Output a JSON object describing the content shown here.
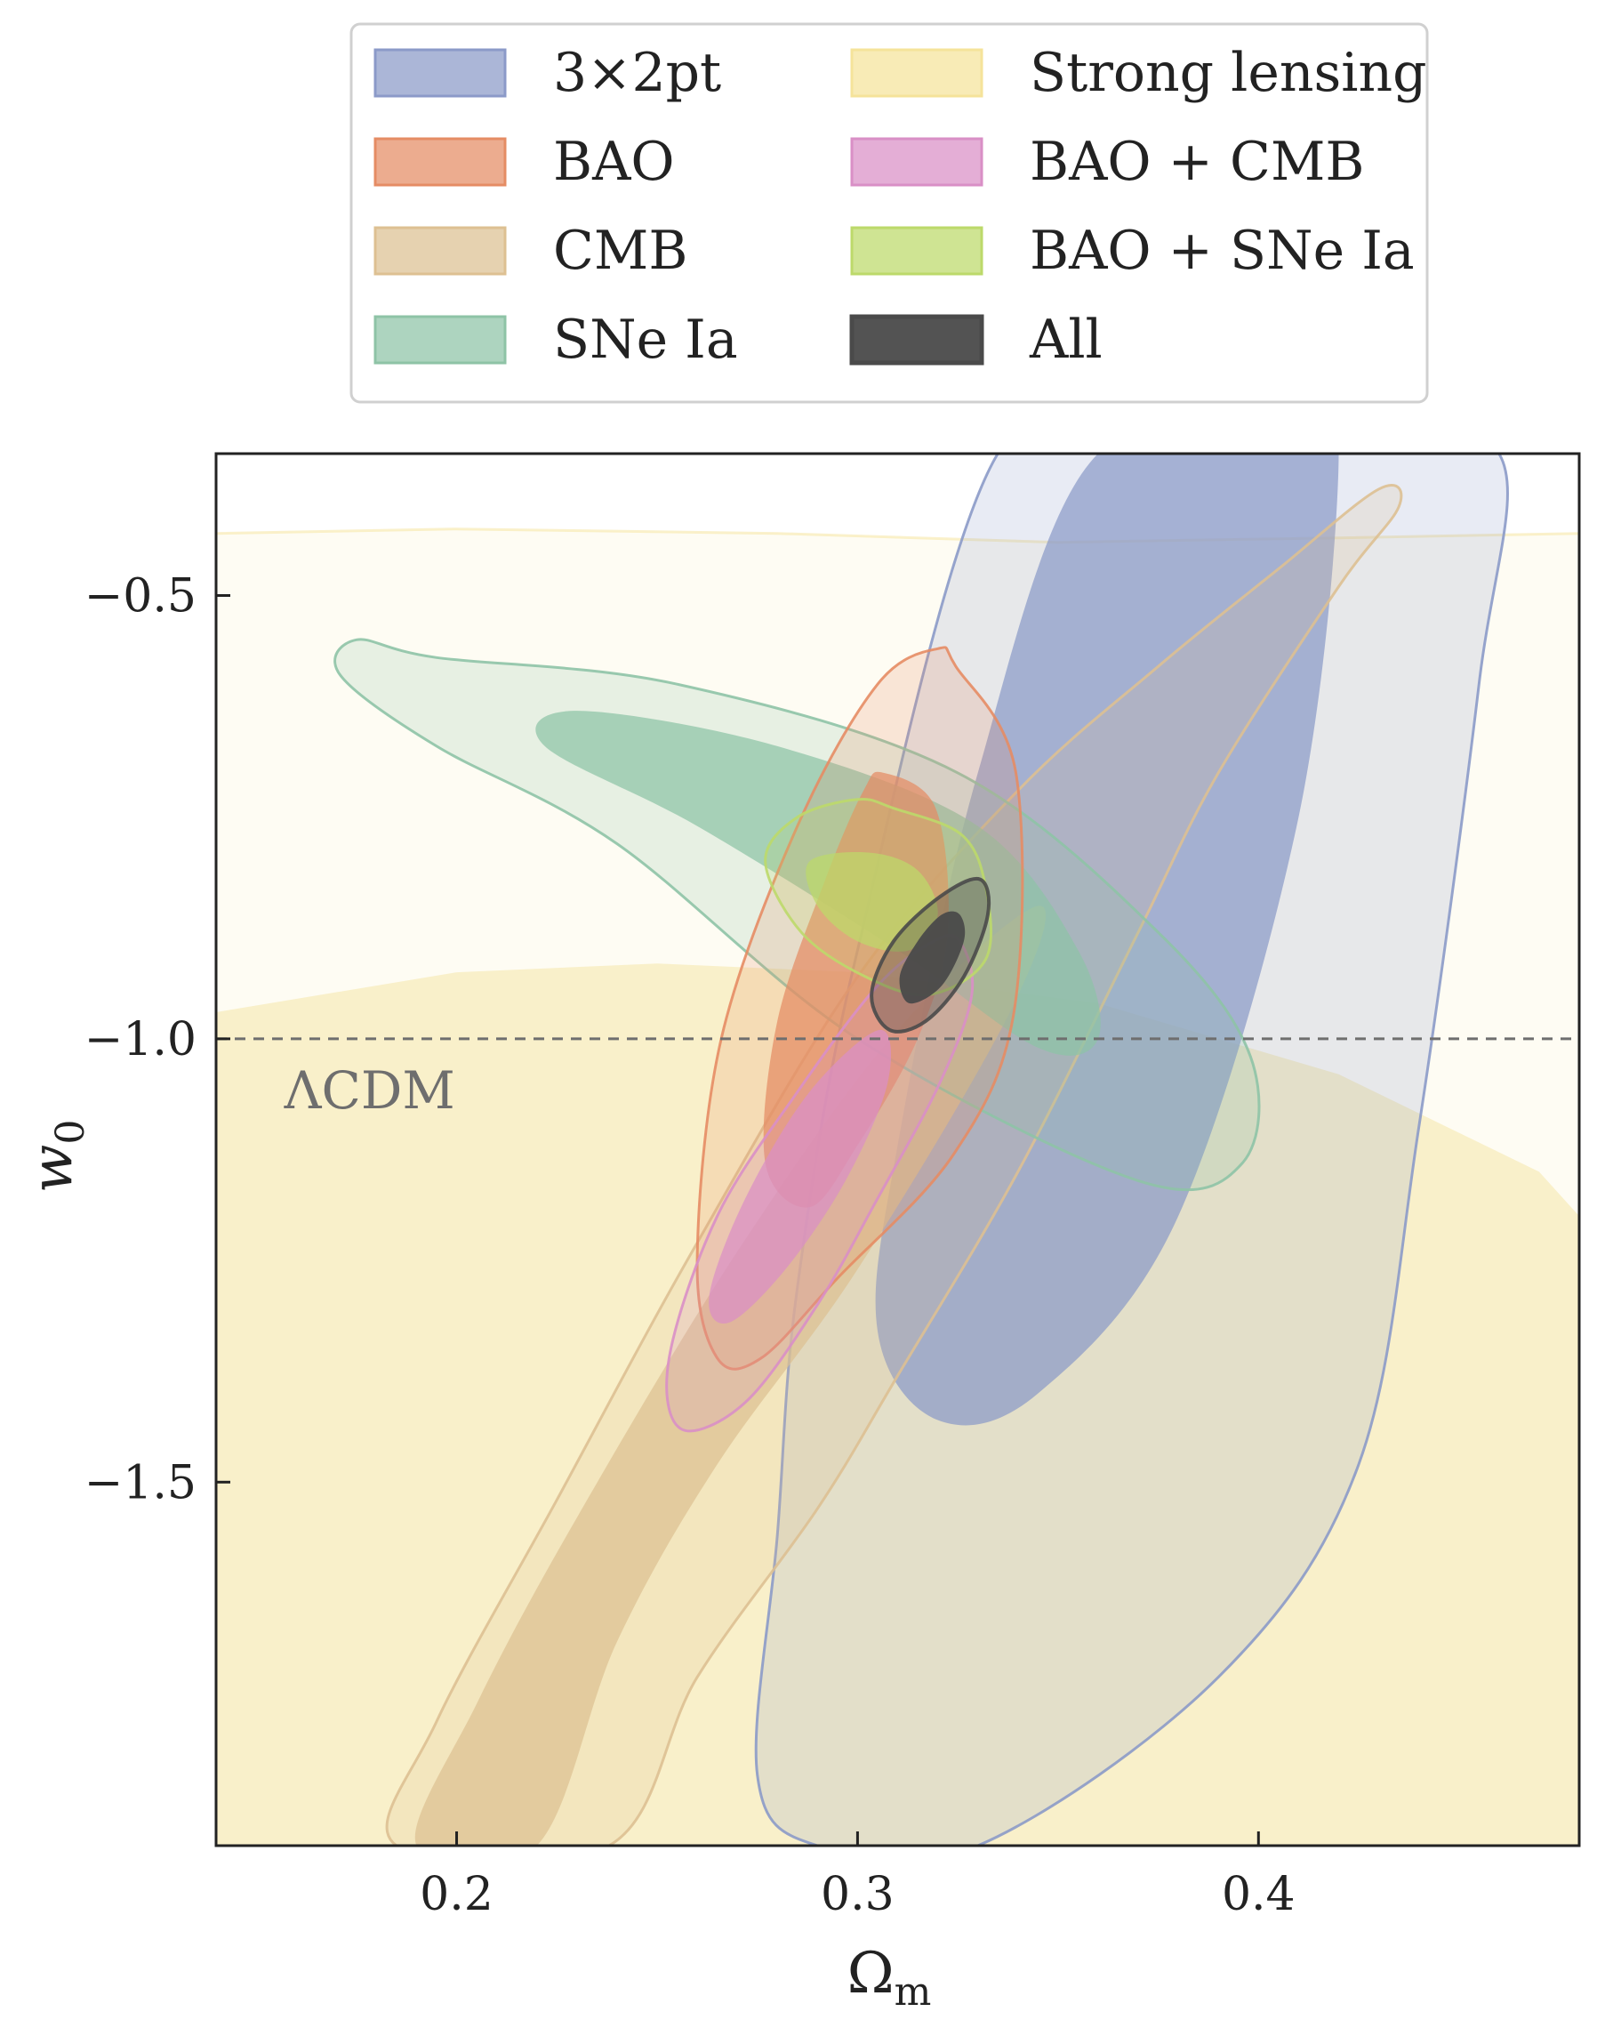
{
  "chart_data": {
    "type": "contour",
    "xlabel": "Ωm",
    "ylabel": "w0",
    "xlim": [
      0.14,
      0.48
    ],
    "ylim": [
      -1.91,
      -0.34
    ],
    "xticks": [
      0.2,
      0.3,
      0.4
    ],
    "xtick_labels": [
      "0.2",
      "0.3",
      "0.4"
    ],
    "yticks": [
      -0.5,
      -1.0,
      -1.5
    ],
    "ytick_labels": [
      "−0.5",
      "−1.0",
      "−1.5"
    ],
    "grid": false,
    "legend_position": "top (above plot), two columns",
    "reference_line": {
      "y": -1.0,
      "style": "dashed",
      "color": "#6e6e6e",
      "label": "ΛCDM"
    },
    "series": [
      {
        "name": "3×2pt",
        "color": "#8b9ac8",
        "outer": [
          [
            0.375,
            -0.34
          ],
          [
            0.4,
            -0.34
          ],
          [
            0.42,
            -0.34
          ],
          [
            0.46,
            -0.34
          ],
          [
            0.455,
            -0.6
          ],
          [
            0.44,
            -1.1
          ],
          [
            0.425,
            -1.48
          ],
          [
            0.39,
            -1.72
          ],
          [
            0.33,
            -1.91
          ],
          [
            0.29,
            -1.91
          ],
          [
            0.275,
            -1.83
          ],
          [
            0.28,
            -1.56
          ],
          [
            0.285,
            -1.28
          ],
          [
            0.3,
            -0.9
          ],
          [
            0.335,
            -0.34
          ]
        ],
        "inner": [
          [
            0.36,
            -0.34
          ],
          [
            0.41,
            -0.34
          ],
          [
            0.42,
            -0.34
          ],
          [
            0.41,
            -0.75
          ],
          [
            0.38,
            -1.2
          ],
          [
            0.345,
            -1.4
          ],
          [
            0.32,
            -1.43
          ],
          [
            0.305,
            -1.33
          ],
          [
            0.31,
            -1.12
          ],
          [
            0.33,
            -0.7
          ]
        ]
      },
      {
        "name": "BAO",
        "color": "#e58c64",
        "outer": [
          [
            0.3245,
            -0.58
          ],
          [
            0.3395,
            -0.7
          ],
          [
            0.339,
            -0.97
          ],
          [
            0.324,
            -1.13
          ],
          [
            0.295,
            -1.27
          ],
          [
            0.276,
            -1.36
          ],
          [
            0.265,
            -1.36
          ],
          [
            0.26,
            -1.25
          ],
          [
            0.266,
            -1.0
          ],
          [
            0.285,
            -0.76
          ],
          [
            0.305,
            -0.6
          ],
          [
            0.32,
            -0.56
          ]
        ],
        "inner": [
          [
            0.3065,
            -0.7
          ],
          [
            0.3195,
            -0.74
          ],
          [
            0.3225,
            -0.88
          ],
          [
            0.315,
            -1.0
          ],
          [
            0.3,
            -1.12
          ],
          [
            0.288,
            -1.19
          ],
          [
            0.277,
            -1.14
          ],
          [
            0.28,
            -0.98
          ],
          [
            0.292,
            -0.82
          ],
          [
            0.3015,
            -0.72
          ]
        ]
      },
      {
        "name": "CMB",
        "color": "#ddc092",
        "outer": [
          [
            0.43,
            -0.38
          ],
          [
            0.435,
            -0.4
          ],
          [
            0.42,
            -0.49
          ],
          [
            0.39,
            -0.7
          ],
          [
            0.37,
            -0.88
          ],
          [
            0.34,
            -1.15
          ],
          [
            0.31,
            -1.38
          ],
          [
            0.29,
            -1.53
          ],
          [
            0.26,
            -1.72
          ],
          [
            0.238,
            -1.91
          ],
          [
            0.185,
            -1.91
          ],
          [
            0.195,
            -1.77
          ],
          [
            0.225,
            -1.52
          ],
          [
            0.26,
            -1.23
          ],
          [
            0.3,
            -0.93
          ],
          [
            0.34,
            -0.72
          ],
          [
            0.375,
            -0.58
          ],
          [
            0.405,
            -0.47
          ]
        ],
        "inner": [
          [
            0.345,
            -0.85
          ],
          [
            0.338,
            -0.97
          ],
          [
            0.3,
            -1.26
          ],
          [
            0.265,
            -1.48
          ],
          [
            0.24,
            -1.68
          ],
          [
            0.22,
            -1.91
          ],
          [
            0.19,
            -1.91
          ],
          [
            0.205,
            -1.75
          ],
          [
            0.23,
            -1.54
          ],
          [
            0.27,
            -1.24
          ],
          [
            0.31,
            -0.99
          ]
        ]
      },
      {
        "name": "SNe Ia",
        "color": "#8ec3a6",
        "outer": [
          [
            0.175,
            -0.55
          ],
          [
            0.195,
            -0.57
          ],
          [
            0.255,
            -0.6
          ],
          [
            0.325,
            -0.7
          ],
          [
            0.375,
            -0.88
          ],
          [
            0.398,
            -1.02
          ],
          [
            0.396,
            -1.14
          ],
          [
            0.37,
            -1.16
          ],
          [
            0.3,
            -1.0
          ],
          [
            0.24,
            -0.78
          ],
          [
            0.195,
            -0.67
          ],
          [
            0.171,
            -0.59
          ]
        ],
        "inner": [
          [
            0.23,
            -0.63
          ],
          [
            0.28,
            -0.67
          ],
          [
            0.33,
            -0.76
          ],
          [
            0.355,
            -0.9
          ],
          [
            0.36,
            -1.0
          ],
          [
            0.345,
            -1.01
          ],
          [
            0.31,
            -0.9
          ],
          [
            0.26,
            -0.76
          ],
          [
            0.222,
            -0.67
          ]
        ]
      },
      {
        "name": "Strong lensing",
        "color": "#f5e39a",
        "outer": [
          [
            0.14,
            -0.43
          ],
          [
            0.2,
            -0.425
          ],
          [
            0.28,
            -0.43
          ],
          [
            0.35,
            -0.44
          ],
          [
            0.42,
            -0.435
          ],
          [
            0.48,
            -0.43
          ],
          [
            0.48,
            -1.91
          ],
          [
            0.14,
            -1.91
          ]
        ],
        "inner": [
          [
            0.14,
            -0.97
          ],
          [
            0.2,
            -0.925
          ],
          [
            0.25,
            -0.915
          ],
          [
            0.3,
            -0.925
          ],
          [
            0.36,
            -0.96
          ],
          [
            0.42,
            -1.04
          ],
          [
            0.47,
            -1.15
          ],
          [
            0.48,
            -1.2
          ],
          [
            0.48,
            -1.91
          ],
          [
            0.14,
            -1.91
          ]
        ]
      },
      {
        "name": "BAO + CMB",
        "color": "#d98fc6",
        "outer": [
          [
            0.3255,
            -0.89
          ],
          [
            0.3285,
            -0.95
          ],
          [
            0.3205,
            -1.05
          ],
          [
            0.305,
            -1.18
          ],
          [
            0.29,
            -1.3
          ],
          [
            0.272,
            -1.41
          ],
          [
            0.256,
            -1.44
          ],
          [
            0.253,
            -1.36
          ],
          [
            0.265,
            -1.2
          ],
          [
            0.285,
            -1.06
          ],
          [
            0.305,
            -0.94
          ],
          [
            0.319,
            -0.89
          ]
        ],
        "inner": [
          [
            0.3055,
            -0.99
          ],
          [
            0.3075,
            -1.05
          ],
          [
            0.297,
            -1.16
          ],
          [
            0.282,
            -1.26
          ],
          [
            0.268,
            -1.32
          ],
          [
            0.263,
            -1.29
          ],
          [
            0.272,
            -1.18
          ],
          [
            0.288,
            -1.06
          ]
        ]
      },
      {
        "name": "BAO + SNe Ia",
        "color": "#bcd96a",
        "outer": [
          [
            0.309,
            -0.74
          ],
          [
            0.326,
            -0.77
          ],
          [
            0.332,
            -0.83
          ],
          [
            0.332,
            -0.91
          ],
          [
            0.318,
            -0.95
          ],
          [
            0.302,
            -0.93
          ],
          [
            0.286,
            -0.88
          ],
          [
            0.277,
            -0.8
          ],
          [
            0.285,
            -0.75
          ],
          [
            0.3,
            -0.73
          ]
        ],
        "inner": [
          [
            0.303,
            -0.79
          ],
          [
            0.315,
            -0.81
          ],
          [
            0.32,
            -0.86
          ],
          [
            0.313,
            -0.9
          ],
          [
            0.3,
            -0.89
          ],
          [
            0.29,
            -0.85
          ],
          [
            0.288,
            -0.8
          ]
        ]
      },
      {
        "name": "All",
        "color": "#4a4a4a",
        "outer": [
          [
            0.3305,
            -0.82
          ],
          [
            0.3325,
            -0.86
          ],
          [
            0.3265,
            -0.93
          ],
          [
            0.317,
            -0.98
          ],
          [
            0.308,
            -0.99
          ],
          [
            0.3035,
            -0.95
          ],
          [
            0.309,
            -0.89
          ],
          [
            0.3205,
            -0.84
          ]
        ],
        "inner": [
          [
            0.3255,
            -0.86
          ],
          [
            0.3265,
            -0.89
          ],
          [
            0.321,
            -0.94
          ],
          [
            0.313,
            -0.96
          ],
          [
            0.3105,
            -0.93
          ],
          [
            0.315,
            -0.89
          ],
          [
            0.321,
            -0.86
          ]
        ]
      }
    ],
    "draw_order": [
      "Strong lensing",
      "3×2pt",
      "CMB",
      "SNe Ia",
      "BAO",
      "BAO + CMB",
      "BAO + SNe Ia",
      "All"
    ],
    "legend_columns": [
      [
        "3×2pt",
        "BAO",
        "CMB",
        "SNe Ia"
      ],
      [
        "Strong lensing",
        "BAO + CMB",
        "BAO + SNe Ia",
        "All"
      ]
    ]
  }
}
